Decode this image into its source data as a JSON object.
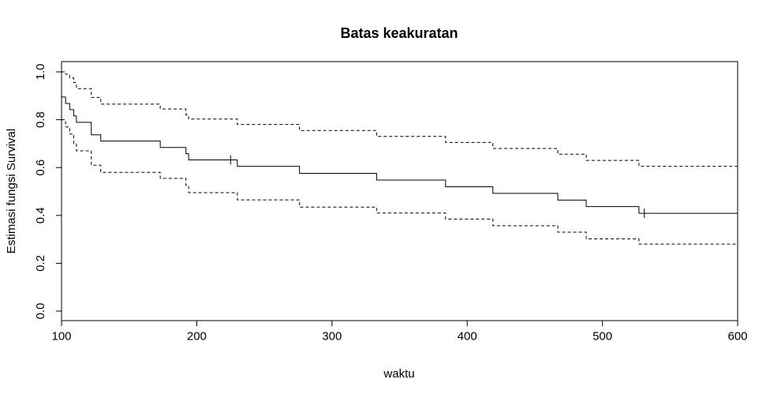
{
  "chart_data": {
    "type": "line",
    "title": "Batas keakuratan",
    "xlabel": "waktu",
    "ylabel": "Estimasi fungsi Survival",
    "xlim": [
      100,
      600
    ],
    "ylim": [
      0,
      1
    ],
    "x_ticks": [
      "100",
      "200",
      "300",
      "400",
      "500",
      "600"
    ],
    "y_ticks": [
      "0.0",
      "0.2",
      "0.4",
      "0.6",
      "0.8",
      "1.0"
    ],
    "grid": false,
    "legend": "none",
    "step": true,
    "series": [
      {
        "style": "solid",
        "x": [
          100,
          103,
          106,
          109,
          111,
          122,
          129,
          173,
          192,
          194,
          230,
          276,
          333,
          384,
          419,
          467,
          488,
          527,
          600
        ],
        "y": [
          0.895,
          0.868,
          0.842,
          0.816,
          0.789,
          0.737,
          0.711,
          0.684,
          0.658,
          0.632,
          0.605,
          0.576,
          0.548,
          0.52,
          0.492,
          0.464,
          0.437,
          0.409,
          0.409
        ],
        "censored_x": [
          225,
          531
        ]
      },
      {
        "style": "dashed",
        "x": [
          100,
          103,
          106,
          109,
          111,
          122,
          129,
          173,
          192,
          194,
          230,
          276,
          333,
          384,
          419,
          467,
          488,
          527,
          600
        ],
        "y": [
          1.0,
          0.99,
          0.975,
          0.955,
          0.93,
          0.893,
          0.865,
          0.845,
          0.82,
          0.803,
          0.78,
          0.755,
          0.73,
          0.705,
          0.68,
          0.656,
          0.63,
          0.605,
          0.605
        ]
      },
      {
        "style": "dashed",
        "x": [
          100,
          103,
          106,
          109,
          111,
          122,
          129,
          173,
          192,
          194,
          230,
          276,
          333,
          384,
          419,
          467,
          488,
          527,
          600
        ],
        "y": [
          0.8,
          0.77,
          0.74,
          0.7,
          0.67,
          0.61,
          0.58,
          0.555,
          0.525,
          0.495,
          0.465,
          0.435,
          0.41,
          0.385,
          0.357,
          0.33,
          0.302,
          0.28,
          0.28
        ]
      }
    ]
  }
}
